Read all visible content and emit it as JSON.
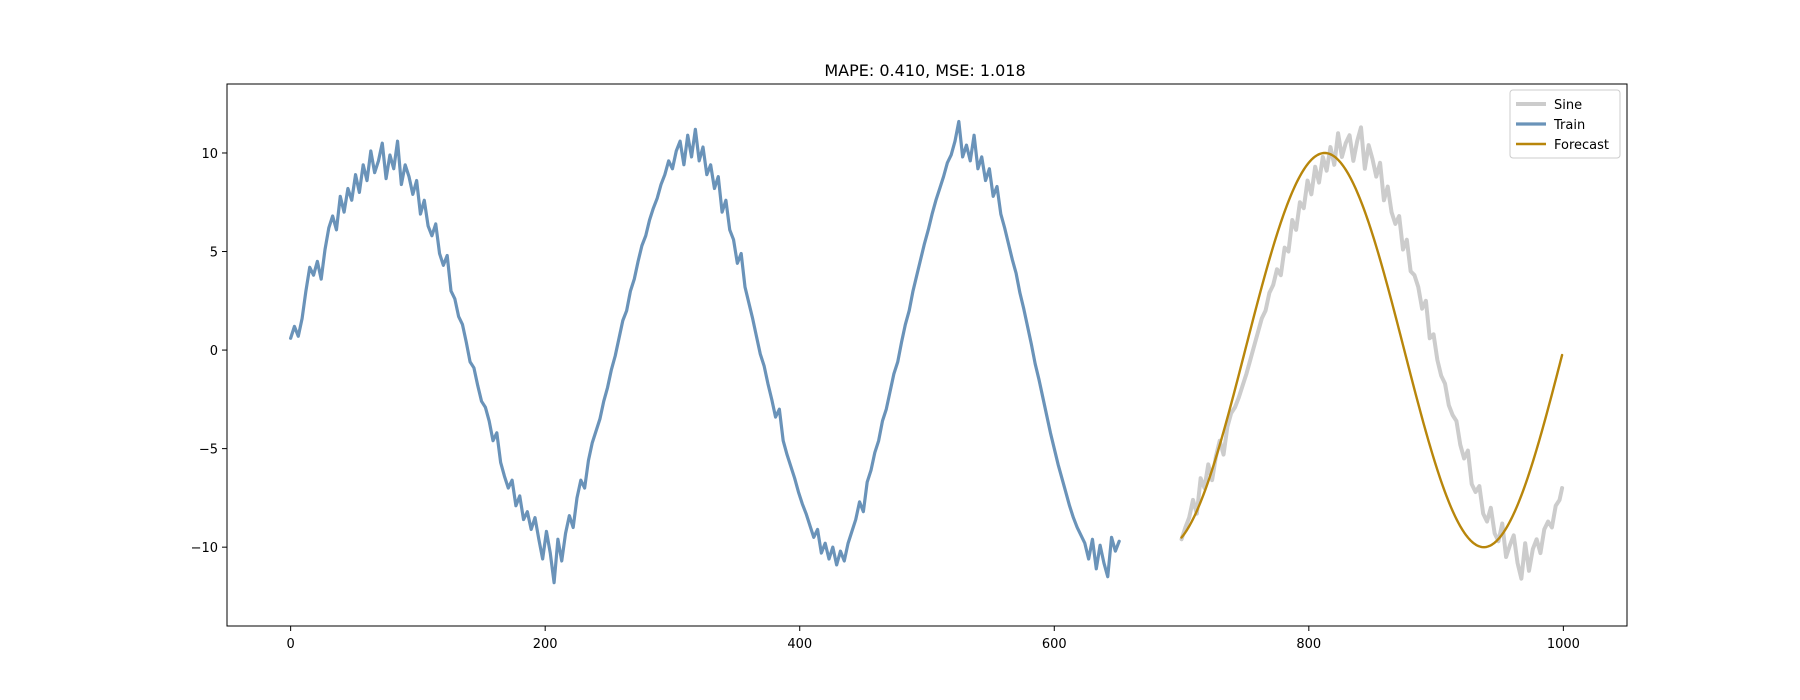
{
  "chart_data": {
    "type": "line",
    "title": "MAPE: 0.410, MSE: 1.018",
    "xlabel": "",
    "ylabel": "",
    "xlim": [
      -50,
      1050
    ],
    "ylim": [
      -14,
      13.5
    ],
    "x_ticks": [
      0,
      200,
      400,
      600,
      800,
      1000
    ],
    "x_tick_labels": [
      "0",
      "200",
      "400",
      "600",
      "800",
      "1000"
    ],
    "y_ticks": [
      10,
      5,
      0,
      -5,
      -10
    ],
    "y_tick_labels": [
      "10",
      "5",
      "0",
      "−5",
      "−10"
    ],
    "grid": false,
    "legend_position": "top-right",
    "series": [
      {
        "name": "Sine",
        "color": "#cccccc",
        "x_range": [
          700,
          999
        ],
        "step": 3,
        "values": [
          -9.6,
          -9.0,
          -8.5,
          -7.6,
          -8.3,
          -6.5,
          -7.0,
          -5.8,
          -6.6,
          -5.4,
          -4.6,
          -5.3,
          -3.9,
          -3.2,
          -2.9,
          -2.4,
          -1.8,
          -1.2,
          -0.5,
          0.2,
          0.9,
          1.6,
          2.0,
          2.9,
          3.3,
          4.1,
          3.8,
          5.2,
          5.0,
          6.6,
          6.1,
          7.5,
          7.2,
          8.6,
          7.9,
          9.3,
          8.5,
          9.8,
          9.1,
          10.3,
          9.4,
          11.0,
          9.8,
          10.5,
          10.9,
          9.6,
          10.6,
          11.3,
          9.2,
          10.4,
          9.7,
          8.8,
          9.5,
          7.6,
          8.3,
          7.0,
          6.4,
          6.8,
          5.1,
          5.6,
          4.0,
          3.8,
          3.2,
          2.1,
          2.5,
          0.6,
          0.8,
          -0.5,
          -1.3,
          -1.7,
          -2.8,
          -3.3,
          -3.6,
          -4.8,
          -5.5,
          -5.1,
          -6.8,
          -7.2,
          -6.9,
          -8.3,
          -8.7,
          -8.0,
          -9.3,
          -9.7,
          -8.8,
          -10.5,
          -9.9,
          -9.4,
          -10.8,
          -11.6,
          -9.8,
          -11.2,
          -10.1,
          -9.6,
          -10.3,
          -9.1,
          -8.7,
          -9.0,
          -7.9,
          -7.6,
          -7.0
        ]
      },
      {
        "name": "Train",
        "color": "#6a93b9",
        "x_range": [
          0,
          699
        ],
        "step": 3,
        "values": [
          0.6,
          1.2,
          0.7,
          1.6,
          3.0,
          4.2,
          3.8,
          4.5,
          3.6,
          5.1,
          6.2,
          6.8,
          6.1,
          7.8,
          7.0,
          8.2,
          7.6,
          8.9,
          8.0,
          9.4,
          8.6,
          10.1,
          9.0,
          9.6,
          10.5,
          8.7,
          9.9,
          9.2,
          10.6,
          8.4,
          9.4,
          8.8,
          7.9,
          8.6,
          6.9,
          7.6,
          6.3,
          5.8,
          6.4,
          4.9,
          4.3,
          4.8,
          3.0,
          2.6,
          1.7,
          1.3,
          0.4,
          -0.6,
          -0.9,
          -1.8,
          -2.6,
          -2.9,
          -3.6,
          -4.6,
          -4.2,
          -5.7,
          -6.4,
          -7.0,
          -6.6,
          -7.9,
          -7.4,
          -8.6,
          -8.2,
          -9.1,
          -8.5,
          -9.6,
          -10.6,
          -9.2,
          -10.3,
          -11.8,
          -9.6,
          -10.7,
          -9.3,
          -8.4,
          -9.0,
          -7.5,
          -6.6,
          -7.0,
          -5.6,
          -4.7,
          -4.1,
          -3.5,
          -2.6,
          -1.9,
          -1.0,
          -0.3,
          0.6,
          1.5,
          2.0,
          3.0,
          3.6,
          4.5,
          5.3,
          5.8,
          6.6,
          7.2,
          7.7,
          8.4,
          8.9,
          9.6,
          9.2,
          10.1,
          10.6,
          9.4,
          10.9,
          9.8,
          11.2,
          9.6,
          10.3,
          8.9,
          9.4,
          8.2,
          8.8,
          7.0,
          7.6,
          6.1,
          5.6,
          4.4,
          4.9,
          3.2,
          2.4,
          1.6,
          0.7,
          -0.2,
          -0.8,
          -1.7,
          -2.5,
          -3.4,
          -3.0,
          -4.6,
          -5.3,
          -5.9,
          -6.5,
          -7.2,
          -7.8,
          -8.3,
          -8.9,
          -9.5,
          -9.1,
          -10.3,
          -9.8,
          -10.6,
          -10.0,
          -10.9,
          -10.2,
          -10.7,
          -9.8,
          -9.2,
          -8.6,
          -7.7,
          -8.2,
          -6.7,
          -6.1,
          -5.2,
          -4.6,
          -3.6,
          -3.0,
          -2.1,
          -1.2,
          -0.6,
          0.4,
          1.3,
          2.0,
          3.0,
          3.8,
          4.6,
          5.4,
          6.1,
          6.9,
          7.6,
          8.2,
          8.8,
          9.5,
          9.9,
          10.6,
          11.6,
          9.8,
          10.4,
          9.6,
          10.9,
          9.2,
          9.8,
          8.6,
          9.2,
          7.8,
          8.3,
          6.9,
          6.2,
          5.4,
          4.6,
          3.9,
          2.9,
          2.1,
          1.2,
          0.3,
          -0.7,
          -1.5,
          -2.4,
          -3.3,
          -4.2,
          -5.0,
          -5.8,
          -6.5,
          -7.2,
          -7.9,
          -8.5,
          -9.0,
          -9.4,
          -9.8,
          -10.6,
          -9.6,
          -11.1,
          -9.9,
          -10.8,
          -11.5,
          -9.5,
          -10.2,
          -9.7
        ]
      },
      {
        "name": "Forecast",
        "color": "#b8860b",
        "x_range": [
          700,
          999
        ],
        "step": 3,
        "smooth_sine": {
          "amplitude": 10.0,
          "period": 250,
          "phase_zero_x": 750
        },
        "values": []
      }
    ]
  }
}
